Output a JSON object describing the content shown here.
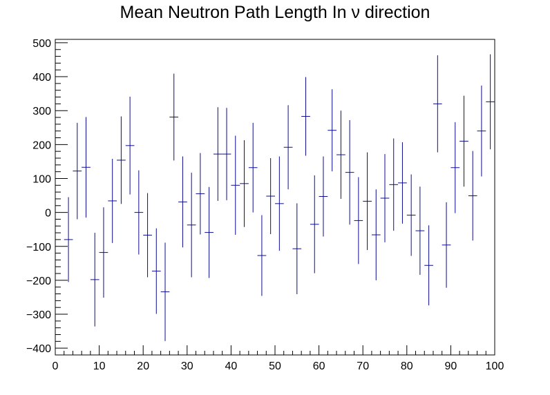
{
  "chart_data": {
    "type": "scatter",
    "title": "Mean Neutron Path Length In   ν direction",
    "xlabel": "",
    "ylabel": "",
    "xlim": [
      0,
      100
    ],
    "ylim": [
      -420,
      510
    ],
    "grid": false,
    "legend": "none",
    "colors": {
      "marker": "#0a0a8c",
      "axis": "#000000"
    },
    "x_ticks": [
      0,
      10,
      20,
      30,
      40,
      50,
      60,
      70,
      80,
      90,
      100
    ],
    "y_ticks": [
      -400,
      -300,
      -200,
      -100,
      0,
      100,
      200,
      300,
      400,
      500
    ],
    "y_tick_labels": [
      "−400",
      "−300",
      "−200",
      "−100",
      "0",
      "100",
      "200",
      "300",
      "400",
      "500"
    ],
    "bin_width": 2,
    "points": [
      {
        "x": 3,
        "y": -80,
        "err": 125
      },
      {
        "x": 5,
        "y": 122,
        "err": 142
      },
      {
        "x": 7,
        "y": 133,
        "err": 148
      },
      {
        "x": 9,
        "y": -198,
        "err": 138
      },
      {
        "x": 11,
        "y": -118,
        "err": 133
      },
      {
        "x": 13,
        "y": 34,
        "err": 124
      },
      {
        "x": 15,
        "y": 154,
        "err": 129
      },
      {
        "x": 17,
        "y": 197,
        "err": 144
      },
      {
        "x": 19,
        "y": 0,
        "err": 124
      },
      {
        "x": 21,
        "y": -67,
        "err": 124
      },
      {
        "x": 23,
        "y": -173,
        "err": 126
      },
      {
        "x": 25,
        "y": -234,
        "err": 145
      },
      {
        "x": 27,
        "y": 281,
        "err": 128
      },
      {
        "x": 29,
        "y": 31,
        "err": 134
      },
      {
        "x": 31,
        "y": -37,
        "err": 154
      },
      {
        "x": 33,
        "y": 55,
        "err": 120
      },
      {
        "x": 35,
        "y": -59,
        "err": 134
      },
      {
        "x": 37,
        "y": 172,
        "err": 138
      },
      {
        "x": 39,
        "y": 172,
        "err": 136
      },
      {
        "x": 41,
        "y": 80,
        "err": 146
      },
      {
        "x": 43,
        "y": 85,
        "err": 128
      },
      {
        "x": 45,
        "y": 132,
        "err": 132
      },
      {
        "x": 47,
        "y": -127,
        "err": 119
      },
      {
        "x": 49,
        "y": 48,
        "err": 112
      },
      {
        "x": 51,
        "y": 26,
        "err": 139
      },
      {
        "x": 53,
        "y": 192,
        "err": 124
      },
      {
        "x": 55,
        "y": -107,
        "err": 134
      },
      {
        "x": 57,
        "y": 283,
        "err": 116
      },
      {
        "x": 59,
        "y": -35,
        "err": 144
      },
      {
        "x": 61,
        "y": 47,
        "err": 118
      },
      {
        "x": 63,
        "y": 242,
        "err": 121
      },
      {
        "x": 65,
        "y": 170,
        "err": 130
      },
      {
        "x": 67,
        "y": 118,
        "err": 154
      },
      {
        "x": 69,
        "y": -24,
        "err": 128
      },
      {
        "x": 71,
        "y": 33,
        "err": 144
      },
      {
        "x": 73,
        "y": -66,
        "err": 134
      },
      {
        "x": 75,
        "y": 42,
        "err": 130
      },
      {
        "x": 77,
        "y": 82,
        "err": 136
      },
      {
        "x": 79,
        "y": 87,
        "err": 120
      },
      {
        "x": 81,
        "y": -8,
        "err": 120
      },
      {
        "x": 83,
        "y": -54,
        "err": 130
      },
      {
        "x": 85,
        "y": -156,
        "err": 118
      },
      {
        "x": 87,
        "y": 320,
        "err": 143
      },
      {
        "x": 89,
        "y": -96,
        "err": 126
      },
      {
        "x": 91,
        "y": 132,
        "err": 134
      },
      {
        "x": 93,
        "y": 210,
        "err": 134
      },
      {
        "x": 95,
        "y": 49,
        "err": 132
      },
      {
        "x": 97,
        "y": 240,
        "err": 134
      },
      {
        "x": 99,
        "y": 326,
        "err": 140
      }
    ]
  }
}
